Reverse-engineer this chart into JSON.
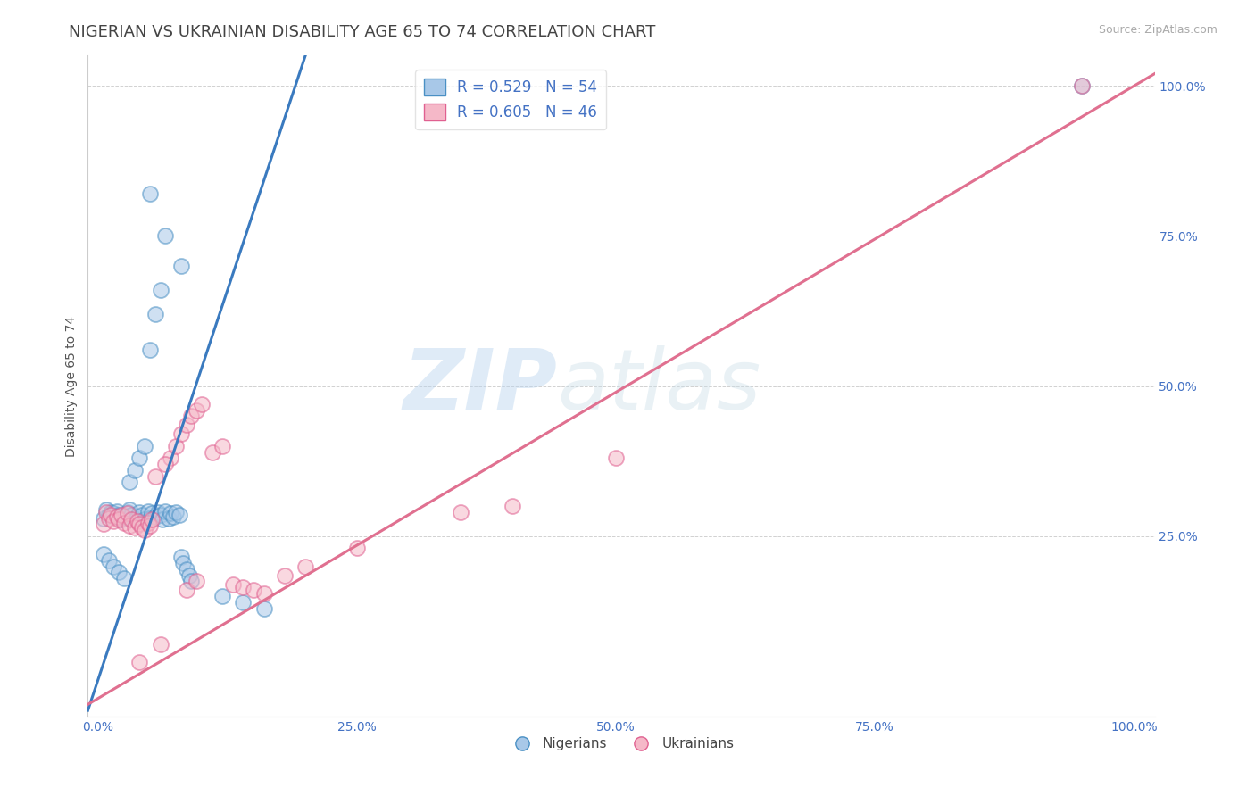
{
  "title": "NIGERIAN VS UKRAINIAN DISABILITY AGE 65 TO 74 CORRELATION CHART",
  "source": "Source: ZipAtlas.com",
  "ylabel": "Disability Age 65 to 74",
  "xlim": [
    -0.01,
    1.02
  ],
  "ylim": [
    -0.05,
    1.05
  ],
  "xticks": [
    0,
    0.25,
    0.5,
    0.75,
    1.0
  ],
  "yticks": [
    0.25,
    0.5,
    0.75,
    1.0
  ],
  "xticklabels": [
    "0.0%",
    "25.0%",
    "50.0%",
    "75.0%",
    "100.0%"
  ],
  "yticklabels": [
    "25.0%",
    "50.0%",
    "75.0%",
    "100.0%"
  ],
  "blue_R": 0.529,
  "blue_N": 54,
  "pink_R": 0.605,
  "pink_N": 46,
  "blue_color": "#a8c8e8",
  "pink_color": "#f5b8c8",
  "blue_edge_color": "#4a90c4",
  "pink_edge_color": "#e06090",
  "blue_line_color": "#3a7abf",
  "pink_line_color": "#e07090",
  "watermark_zip": "ZIP",
  "watermark_atlas": "atlas",
  "legend_label_blue": "Nigerians",
  "legend_label_pink": "Ukrainians",
  "blue_scatter_x": [
    0.005,
    0.008,
    0.01,
    0.012,
    0.015,
    0.018,
    0.02,
    0.022,
    0.025,
    0.028,
    0.03,
    0.032,
    0.035,
    0.038,
    0.04,
    0.042,
    0.045,
    0.048,
    0.05,
    0.052,
    0.055,
    0.058,
    0.06,
    0.062,
    0.065,
    0.068,
    0.07,
    0.072,
    0.075,
    0.078,
    0.08,
    0.082,
    0.085,
    0.088,
    0.09,
    0.005,
    0.01,
    0.015,
    0.02,
    0.025,
    0.03,
    0.035,
    0.04,
    0.045,
    0.05,
    0.055,
    0.06,
    0.12,
    0.14,
    0.16,
    0.05,
    0.065,
    0.08,
    0.95
  ],
  "blue_scatter_y": [
    0.28,
    0.295,
    0.285,
    0.29,
    0.288,
    0.292,
    0.285,
    0.278,
    0.282,
    0.29,
    0.295,
    0.285,
    0.278,
    0.282,
    0.29,
    0.285,
    0.278,
    0.292,
    0.28,
    0.288,
    0.282,
    0.29,
    0.285,
    0.278,
    0.292,
    0.28,
    0.288,
    0.282,
    0.29,
    0.285,
    0.215,
    0.205,
    0.195,
    0.185,
    0.175,
    0.22,
    0.21,
    0.2,
    0.19,
    0.18,
    0.34,
    0.36,
    0.38,
    0.4,
    0.56,
    0.62,
    0.66,
    0.15,
    0.14,
    0.13,
    0.82,
    0.75,
    0.7,
    1.0
  ],
  "pink_scatter_x": [
    0.005,
    0.008,
    0.01,
    0.012,
    0.015,
    0.018,
    0.02,
    0.022,
    0.025,
    0.028,
    0.03,
    0.032,
    0.035,
    0.038,
    0.04,
    0.042,
    0.045,
    0.048,
    0.05,
    0.052,
    0.07,
    0.075,
    0.08,
    0.085,
    0.09,
    0.095,
    0.1,
    0.11,
    0.12,
    0.13,
    0.14,
    0.15,
    0.16,
    0.18,
    0.2,
    0.25,
    0.055,
    0.065,
    0.085,
    0.095,
    0.35,
    0.4,
    0.06,
    0.04,
    0.5,
    0.95
  ],
  "pink_scatter_y": [
    0.27,
    0.29,
    0.28,
    0.285,
    0.275,
    0.282,
    0.278,
    0.285,
    0.272,
    0.288,
    0.268,
    0.278,
    0.265,
    0.275,
    0.27,
    0.265,
    0.26,
    0.272,
    0.268,
    0.278,
    0.38,
    0.4,
    0.42,
    0.435,
    0.45,
    0.46,
    0.47,
    0.39,
    0.4,
    0.17,
    0.165,
    0.16,
    0.155,
    0.185,
    0.2,
    0.23,
    0.35,
    0.37,
    0.16,
    0.175,
    0.29,
    0.3,
    0.07,
    0.04,
    0.38,
    1.0
  ],
  "background_color": "#ffffff",
  "grid_color": "#cccccc",
  "tick_color": "#4472c4",
  "title_fontsize": 13,
  "axis_label_fontsize": 10,
  "tick_fontsize": 10,
  "source_fontsize": 9,
  "blue_line_x0": -0.01,
  "blue_line_y0": -0.04,
  "blue_line_x1": 0.2,
  "blue_line_y1": 1.05,
  "pink_line_x0": -0.01,
  "pink_line_y0": -0.03,
  "pink_line_x1": 1.02,
  "pink_line_y1": 1.02
}
